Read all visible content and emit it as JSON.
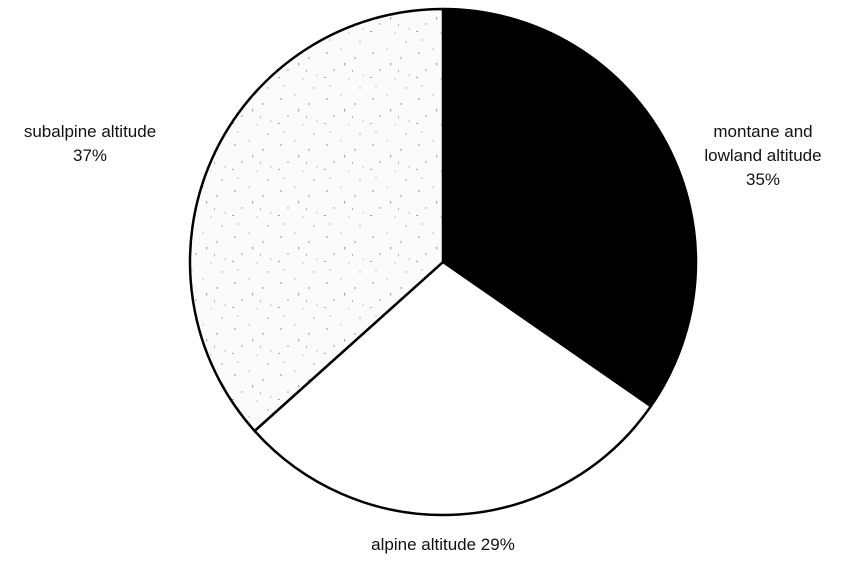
{
  "chart_data": {
    "type": "pie",
    "title": "",
    "start_angle_deg": 0,
    "direction": "clockwise",
    "slices": [
      {
        "label_lines": [
          "montane and",
          "lowland altitude",
          "35%"
        ],
        "value": 35,
        "fill": "#000000",
        "pattern": "solid"
      },
      {
        "label_lines": [
          "alpine altitude 29%"
        ],
        "value": 29,
        "fill": "#ffffff",
        "pattern": "solid"
      },
      {
        "label_lines": [
          "subalpine altitude",
          "37%"
        ],
        "value": 37,
        "fill": "#fbfbfb",
        "pattern": "speckled"
      }
    ]
  }
}
